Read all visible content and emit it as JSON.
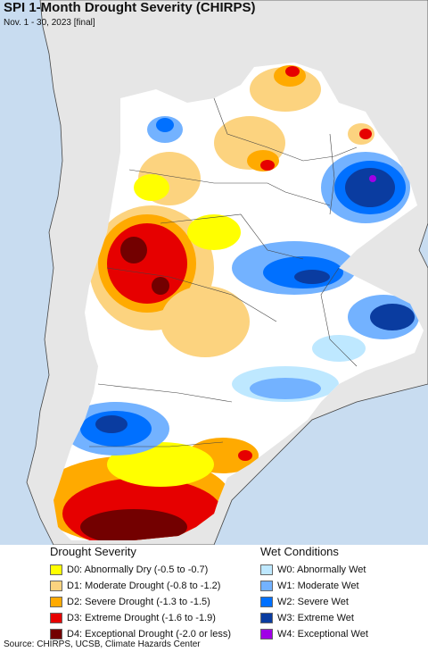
{
  "title": "SPI 1-Month Drought Severity (CHIRPS)",
  "subtitle": "Nov. 1 - 30, 2023 [final]",
  "legend": {
    "drought": {
      "heading": "Drought Severity",
      "items": [
        {
          "label": "D0: Abnormally Dry (-0.5 to -0.7)",
          "color": "#ffff00"
        },
        {
          "label": "D1: Moderate Drought (-0.8 to -1.2)",
          "color": "#fcd37f"
        },
        {
          "label": "D2: Severe Drought (-1.3 to -1.5)",
          "color": "#ffaa00"
        },
        {
          "label": "D3: Extreme Drought (-1.6 to -1.9)",
          "color": "#e60000"
        },
        {
          "label": "D4: Exceptional Drought (-2.0 or less)",
          "color": "#730000"
        }
      ]
    },
    "wet": {
      "heading": "Wet Conditions",
      "items": [
        {
          "label": "W0: Abnormally Wet",
          "color": "#bee8ff"
        },
        {
          "label": "W1: Moderate Wet",
          "color": "#73b2ff"
        },
        {
          "label": "W2: Severe Wet",
          "color": "#0070ff"
        },
        {
          "label": "W3: Extreme Wet",
          "color": "#0a3ca0"
        },
        {
          "label": "W4: Exceptional Wet",
          "color": "#a000e6"
        }
      ]
    }
  },
  "colors": {
    "ocean": "#c8dcf0",
    "land_outside": "#e6e6e6",
    "land_inside": "#ffffff",
    "border": "#444444"
  },
  "source": "Source: CHIRPS, UCSB, Climate Hazards Center"
}
